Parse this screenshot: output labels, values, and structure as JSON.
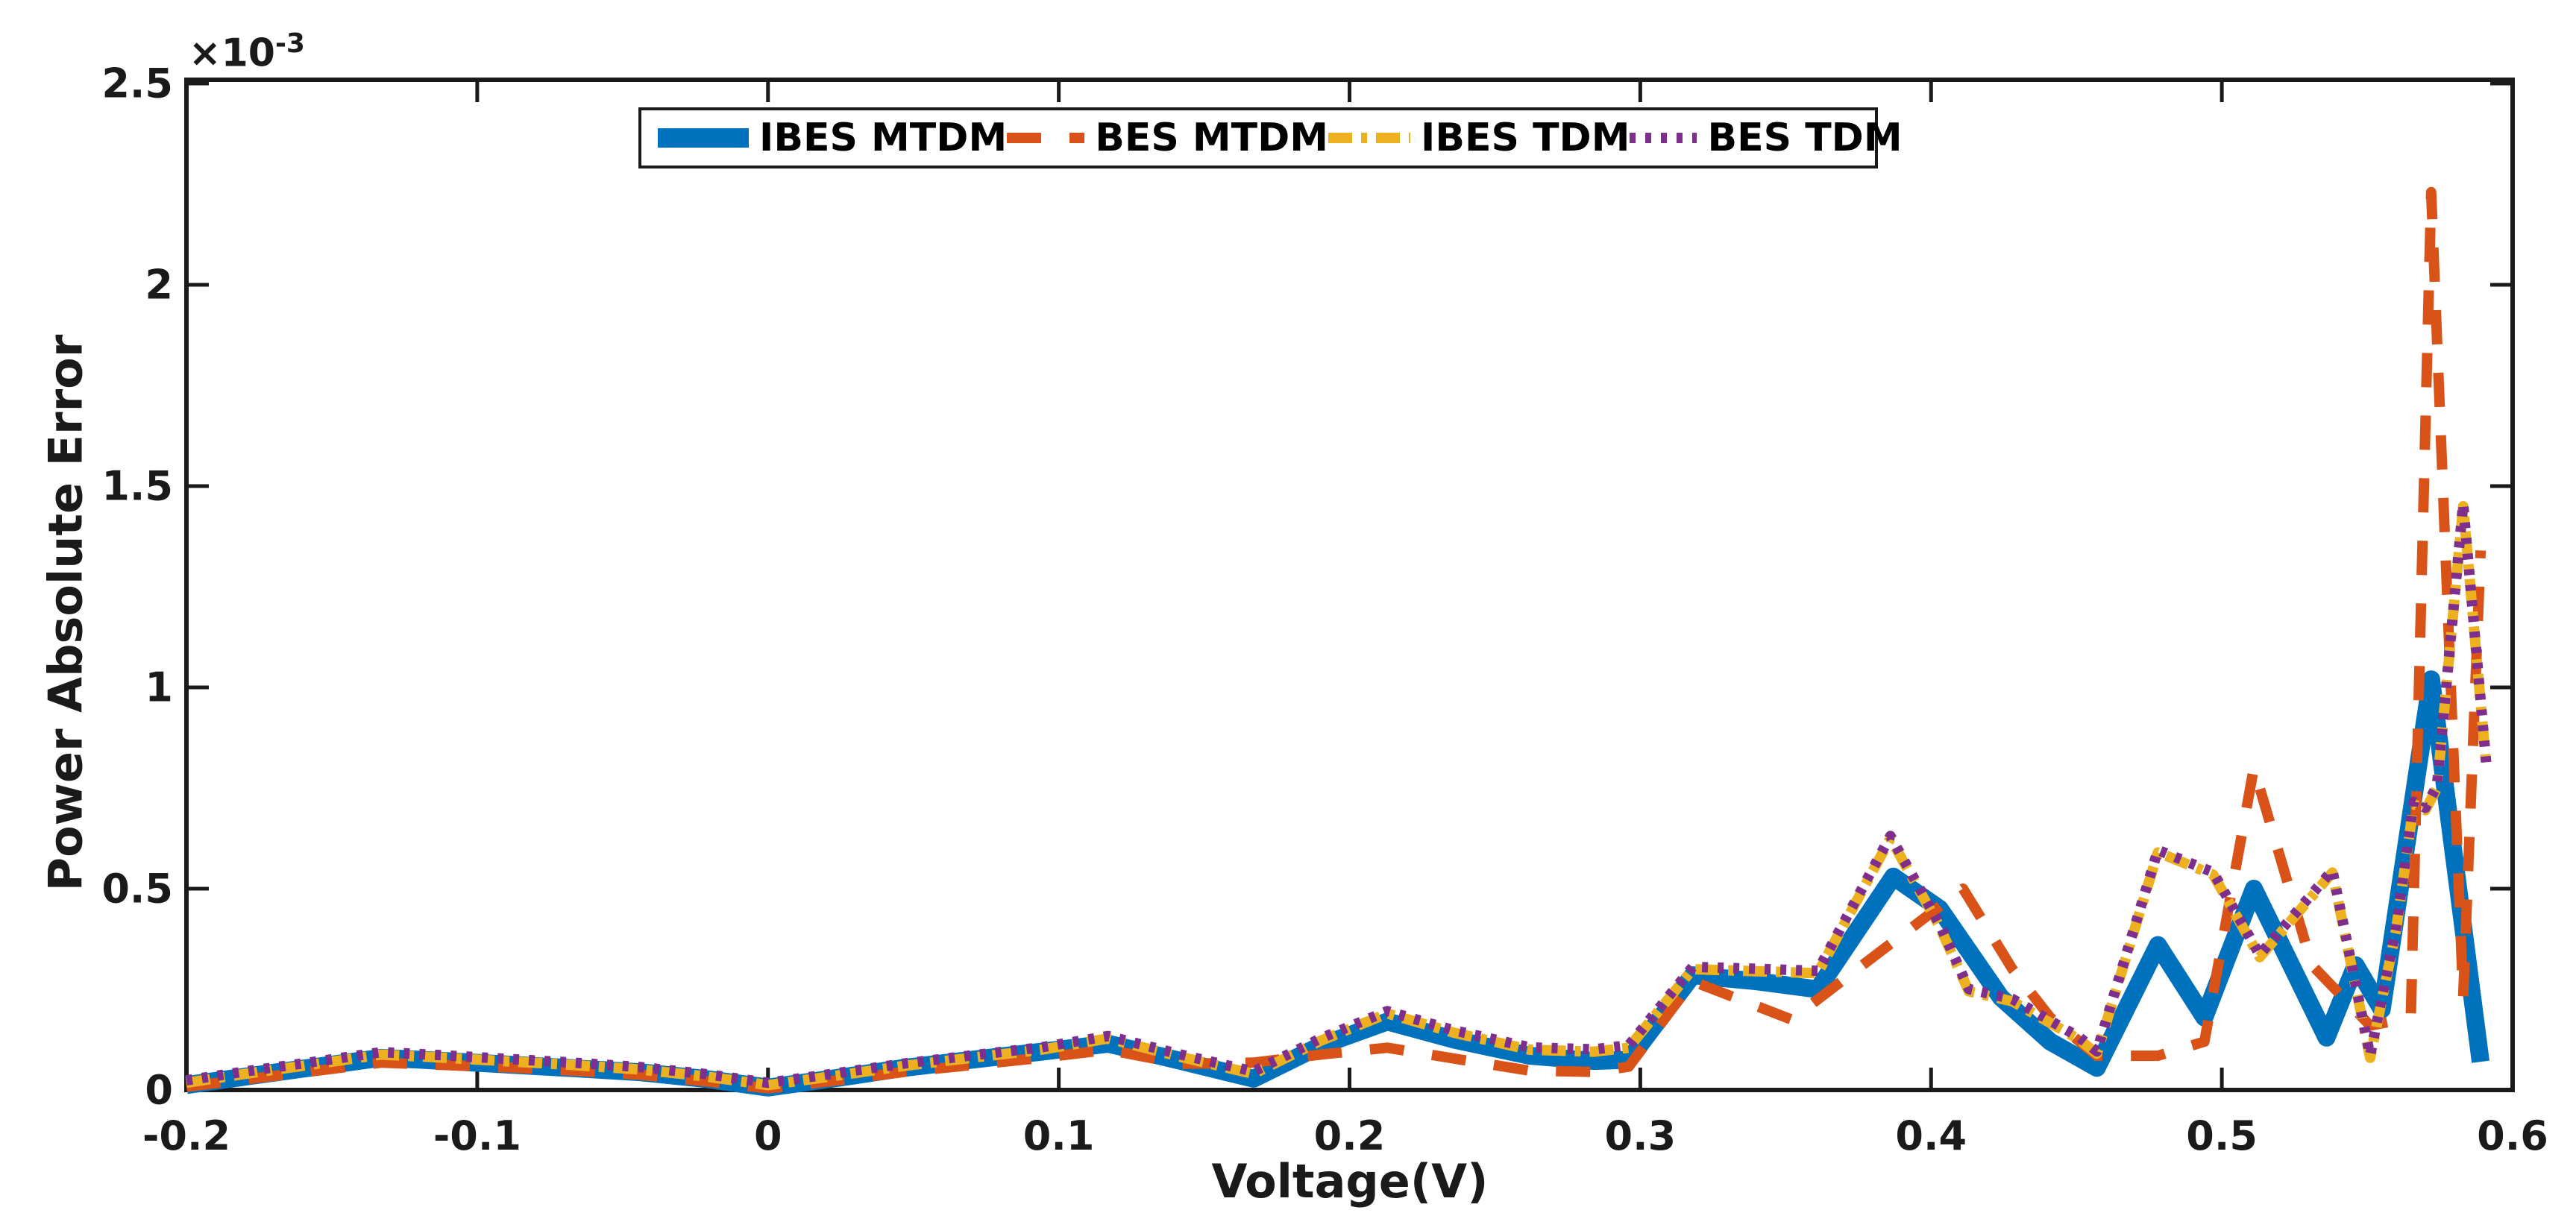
{
  "figure": {
    "type": "matlab-style line plot",
    "background": "#ffffff",
    "axis_color": "#1a1a1a"
  },
  "chart_data": {
    "type": "line",
    "title": "",
    "xlabel": "Voltage(V)",
    "ylabel": "Power Absolute Error",
    "y_axis_multiplier": {
      "base": "×10",
      "exp": "-3"
    },
    "xlim": [
      -0.2,
      0.6
    ],
    "ylim_x1e-3": [
      0,
      2.5
    ],
    "grid": "off",
    "box": "on",
    "tick_direction": "in",
    "xtick_labels": [
      "-0.2",
      "-0.1",
      "0",
      "0.1",
      "0.2",
      "0.3",
      "0.4",
      "0.5",
      "0.6"
    ],
    "xtick_values": [
      -0.2,
      -0.1,
      0,
      0.1,
      0.2,
      0.3,
      0.4,
      0.5,
      0.6
    ],
    "ytick_labels": [
      "0",
      "0.5",
      "1",
      "1.5",
      "2",
      "2.5"
    ],
    "ytick_values_x1e-3": [
      0,
      0.5,
      1,
      1.5,
      2,
      2.5
    ],
    "legend_position": "top-center-horizontal",
    "y_unit_note": "series y values are in units of 1e-3 (axis shows ×10^-3)",
    "series": [
      {
        "name": "IBES MTDM",
        "color": "#0072BD",
        "line_style": "solid",
        "line_width": 24,
        "x": [
          -0.2,
          -0.178,
          -0.155,
          -0.133,
          -0.111,
          -0.089,
          -0.067,
          -0.044,
          -0.022,
          0.0,
          0.024,
          0.047,
          0.07,
          0.094,
          0.117,
          0.142,
          0.167,
          0.19,
          0.213,
          0.236,
          0.262,
          0.284,
          0.296,
          0.318,
          0.34,
          0.361,
          0.387,
          0.403,
          0.424,
          0.441,
          0.457,
          0.478,
          0.494,
          0.511,
          0.536,
          0.546,
          0.555,
          0.572,
          0.589
        ],
        "y": [
          0.012,
          0.035,
          0.058,
          0.08,
          0.072,
          0.063,
          0.054,
          0.044,
          0.028,
          0.006,
          0.03,
          0.055,
          0.075,
          0.095,
          0.115,
          0.072,
          0.028,
          0.11,
          0.17,
          0.125,
          0.085,
          0.072,
          0.075,
          0.285,
          0.27,
          0.25,
          0.53,
          0.45,
          0.23,
          0.12,
          0.055,
          0.36,
          0.18,
          0.5,
          0.13,
          0.31,
          0.2,
          1.02,
          0.07
        ]
      },
      {
        "name": "BES MTDM",
        "color": "#D95319",
        "line_style": "dashed",
        "line_width": 14,
        "x": [
          -0.2,
          -0.178,
          -0.155,
          -0.133,
          -0.111,
          -0.089,
          -0.067,
          -0.044,
          -0.022,
          0.0,
          0.024,
          0.047,
          0.07,
          0.094,
          0.117,
          0.142,
          0.167,
          0.19,
          0.213,
          0.236,
          0.262,
          0.284,
          0.296,
          0.318,
          0.352,
          0.38,
          0.411,
          0.428,
          0.441,
          0.457,
          0.478,
          0.494,
          0.511,
          0.531,
          0.551,
          0.565,
          0.572,
          0.583,
          0.589
        ],
        "y": [
          0.008,
          0.028,
          0.048,
          0.068,
          0.062,
          0.056,
          0.048,
          0.038,
          0.022,
          0.004,
          0.024,
          0.045,
          0.062,
          0.08,
          0.1,
          0.065,
          0.068,
          0.088,
          0.105,
          0.078,
          0.048,
          0.045,
          0.058,
          0.27,
          0.175,
          0.33,
          0.5,
          0.3,
          0.18,
          0.085,
          0.085,
          0.12,
          0.8,
          0.31,
          0.16,
          0.18,
          2.23,
          0.23,
          1.34
        ]
      },
      {
        "name": "IBES TDM",
        "color": "#EDB120",
        "line_style": "dashdot",
        "line_width": 14,
        "x": [
          -0.2,
          -0.178,
          -0.155,
          -0.133,
          -0.111,
          -0.089,
          -0.067,
          -0.044,
          -0.022,
          0.0,
          0.024,
          0.047,
          0.07,
          0.094,
          0.117,
          0.142,
          0.167,
          0.19,
          0.213,
          0.236,
          0.262,
          0.284,
          0.296,
          0.318,
          0.34,
          0.361,
          0.386,
          0.403,
          0.413,
          0.428,
          0.451,
          0.457,
          0.478,
          0.497,
          0.513,
          0.538,
          0.551,
          0.56,
          0.566,
          0.57,
          0.574,
          0.583,
          0.591
        ],
        "y": [
          0.018,
          0.042,
          0.065,
          0.088,
          0.08,
          0.071,
          0.062,
          0.051,
          0.034,
          0.012,
          0.036,
          0.06,
          0.08,
          0.1,
          0.128,
          0.082,
          0.04,
          0.122,
          0.19,
          0.142,
          0.1,
          0.095,
          0.105,
          0.3,
          0.295,
          0.29,
          0.625,
          0.405,
          0.245,
          0.22,
          0.125,
          0.09,
          0.59,
          0.535,
          0.33,
          0.54,
          0.08,
          0.4,
          0.71,
          0.695,
          0.75,
          1.45,
          0.8
        ]
      },
      {
        "name": "BES TDM",
        "color": "#7E2F8E",
        "line_style": "dotted",
        "line_width": 14,
        "x": [
          -0.2,
          -0.178,
          -0.155,
          -0.133,
          -0.111,
          -0.089,
          -0.067,
          -0.044,
          -0.022,
          0.0,
          0.024,
          0.047,
          0.07,
          0.094,
          0.117,
          0.142,
          0.167,
          0.19,
          0.213,
          0.236,
          0.262,
          0.284,
          0.296,
          0.318,
          0.34,
          0.361,
          0.386,
          0.403,
          0.413,
          0.428,
          0.451,
          0.457,
          0.478,
          0.497,
          0.513,
          0.538,
          0.551,
          0.56,
          0.566,
          0.57,
          0.574,
          0.583,
          0.591
        ],
        "y": [
          0.024,
          0.048,
          0.071,
          0.094,
          0.086,
          0.077,
          0.068,
          0.057,
          0.04,
          0.018,
          0.042,
          0.066,
          0.086,
          0.106,
          0.134,
          0.088,
          0.046,
          0.128,
          0.196,
          0.148,
          0.106,
          0.101,
          0.111,
          0.306,
          0.301,
          0.296,
          0.631,
          0.411,
          0.251,
          0.226,
          0.131,
          0.096,
          0.596,
          0.541,
          0.336,
          0.546,
          0.086,
          0.406,
          0.716,
          0.701,
          0.756,
          1.456,
          0.806
        ]
      }
    ]
  }
}
